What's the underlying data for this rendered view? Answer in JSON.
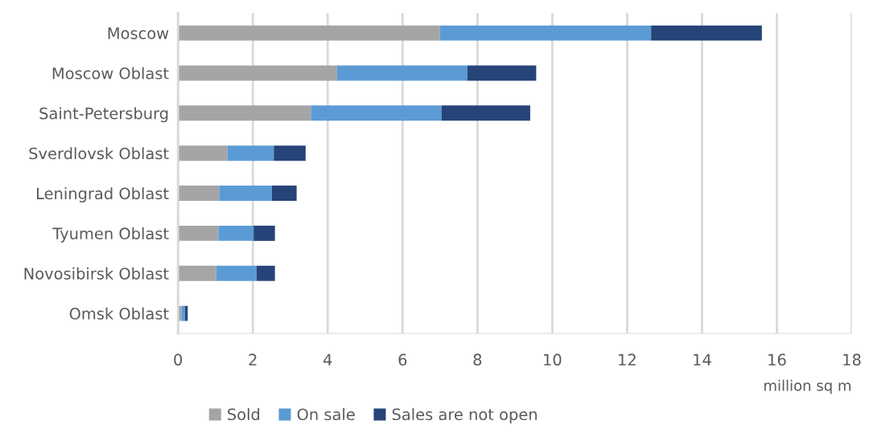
{
  "chart_data": {
    "type": "bar",
    "orientation": "horizontal",
    "stacked": true,
    "categories": [
      "Moscow",
      "Moscow Oblast",
      "Saint-Petersburg",
      "Sverdlovsk Oblast",
      "Leningrad Oblast",
      "Tyumen Oblast",
      "Novosibirsk Oblast",
      "Omsk Oblast"
    ],
    "series": [
      {
        "name": "Sold",
        "color": "#a5a5a5",
        "values": [
          7.0,
          4.25,
          3.55,
          1.32,
          1.1,
          1.08,
          1.02,
          0.09
        ]
      },
      {
        "name": "On sale",
        "color": "#5b9bd5",
        "values": [
          5.64,
          3.48,
          3.49,
          1.24,
          1.41,
          0.94,
          1.08,
          0.1
        ]
      },
      {
        "name": "Sales are not open",
        "color": "#264478",
        "values": [
          2.96,
          1.84,
          2.37,
          0.85,
          0.66,
          0.57,
          0.49,
          0.07
        ]
      }
    ],
    "xlabel": "million sq m",
    "xlim": [
      0,
      18
    ],
    "xticks": [
      0,
      2,
      4,
      6,
      8,
      10,
      12,
      14,
      16,
      18
    ],
    "grid": "x",
    "legend": "bottom"
  }
}
